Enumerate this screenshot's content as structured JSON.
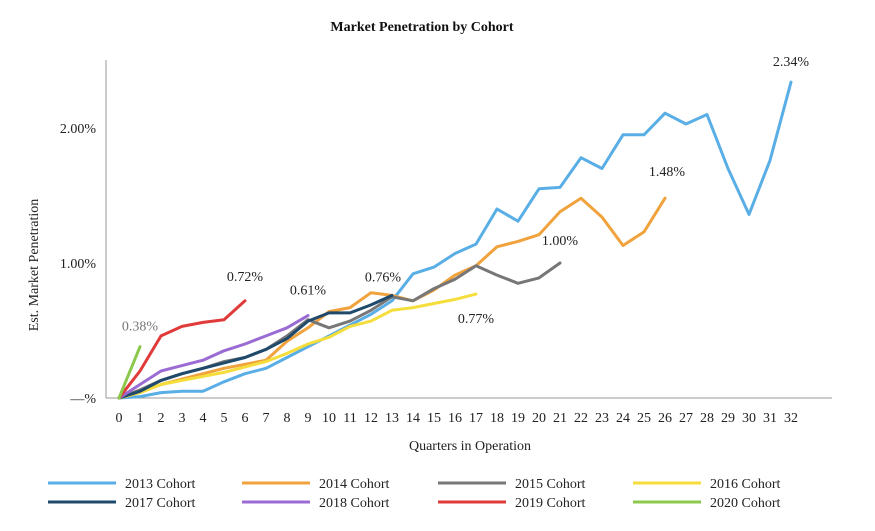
{
  "chart_data": {
    "type": "line",
    "title": "Market Penetration by Cohort",
    "xlabel": "Quarters in Operation",
    "ylabel": "Est. Market Penetration",
    "xlim": [
      0,
      32
    ],
    "ylim": [
      0,
      2.5
    ],
    "x_ticks": [
      "0",
      "1",
      "2",
      "3",
      "4",
      "5",
      "6",
      "7",
      "8",
      "9",
      "10",
      "11",
      "12",
      "13",
      "14",
      "15",
      "16",
      "17",
      "18",
      "19",
      "20",
      "21",
      "22",
      "23",
      "24",
      "25",
      "26",
      "27",
      "28",
      "29",
      "30",
      "31",
      "32"
    ],
    "y_ticks": [
      {
        "value": 0,
        "label": "—%"
      },
      {
        "value": 1,
        "label": "1.00%"
      },
      {
        "value": 2,
        "label": "2.00%"
      }
    ],
    "grid": false,
    "legend_position": "bottom",
    "series": [
      {
        "name": "2013 Cohort",
        "color": "#5aaee6",
        "values": [
          0.0,
          0.01,
          0.04,
          0.05,
          0.05,
          0.12,
          0.18,
          0.22,
          0.3,
          0.38,
          0.46,
          0.54,
          0.62,
          0.72,
          0.92,
          0.97,
          1.07,
          1.14,
          1.4,
          1.31,
          1.55,
          1.56,
          1.78,
          1.7,
          1.95,
          1.95,
          2.11,
          2.03,
          2.1,
          1.7,
          1.36,
          1.76,
          2.34
        ]
      },
      {
        "name": "2014 Cohort",
        "color": "#f0a23c",
        "values": [
          0.0,
          0.04,
          0.1,
          0.14,
          0.18,
          0.22,
          0.25,
          0.28,
          0.42,
          0.52,
          0.64,
          0.67,
          0.78,
          0.76,
          0.72,
          0.8,
          0.91,
          0.98,
          1.12,
          1.16,
          1.21,
          1.38,
          1.48,
          1.34,
          1.13,
          1.23,
          1.48
        ]
      },
      {
        "name": "2015 Cohort",
        "color": "#777777",
        "values": [
          0.0,
          0.06,
          0.13,
          0.18,
          0.22,
          0.27,
          0.3,
          0.36,
          0.46,
          0.58,
          0.52,
          0.57,
          0.65,
          0.75,
          0.72,
          0.81,
          0.88,
          0.98,
          0.91,
          0.85,
          0.89,
          1.0
        ]
      },
      {
        "name": "2016 Cohort",
        "color": "#f5de3c",
        "values": [
          0.0,
          0.04,
          0.1,
          0.13,
          0.16,
          0.19,
          0.23,
          0.27,
          0.33,
          0.4,
          0.45,
          0.53,
          0.57,
          0.65,
          0.67,
          0.7,
          0.73,
          0.77
        ]
      },
      {
        "name": "2017 Cohort",
        "color": "#1f4a6b",
        "values": [
          0.0,
          0.05,
          0.13,
          0.18,
          0.22,
          0.26,
          0.3,
          0.36,
          0.44,
          0.57,
          0.63,
          0.63,
          0.69,
          0.76
        ]
      },
      {
        "name": "2018 Cohort",
        "color": "#9b6bd4",
        "values": [
          0.0,
          0.1,
          0.2,
          0.24,
          0.28,
          0.35,
          0.4,
          0.46,
          0.52,
          0.61
        ]
      },
      {
        "name": "2019 Cohort",
        "color": "#e03a3a",
        "values": [
          0.0,
          0.2,
          0.46,
          0.53,
          0.56,
          0.58,
          0.72
        ]
      },
      {
        "name": "2020 Cohort",
        "color": "#8cc84b",
        "values": [
          0.0,
          0.38
        ]
      }
    ],
    "annotations": [
      {
        "series": "2013 Cohort",
        "x": 32,
        "text": "2.34%"
      },
      {
        "series": "2014 Cohort",
        "x": 26,
        "text": "1.48%"
      },
      {
        "series": "2015 Cohort",
        "x": 21,
        "text": "1.00%"
      },
      {
        "series": "2016 Cohort",
        "x": 17,
        "text": "0.77%"
      },
      {
        "series": "2017 Cohort",
        "x": 13,
        "text": "0.76%"
      },
      {
        "series": "2018 Cohort",
        "x": 9,
        "text": "0.61%"
      },
      {
        "series": "2019 Cohort",
        "x": 6,
        "text": "0.72%"
      },
      {
        "series": "2020 Cohort",
        "x": 1,
        "text": "0.38%"
      }
    ]
  }
}
